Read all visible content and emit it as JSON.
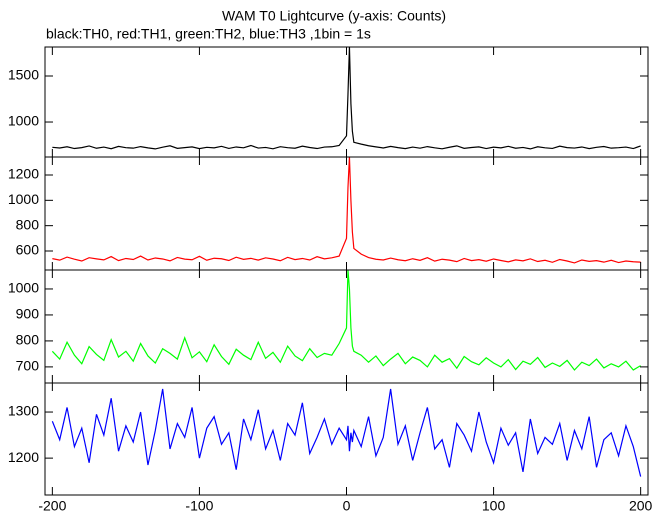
{
  "chart_data": [
    {
      "type": "line",
      "title": "WAM T0 Lightcurve (y-axis: Counts)",
      "subtitle": "black:TH0, red:TH1, green:TH2, blue:TH3 ,1bin = 1s",
      "x": [
        -200,
        -195,
        -190,
        -185,
        -180,
        -175,
        -170,
        -165,
        -160,
        -155,
        -150,
        -145,
        -140,
        -135,
        -130,
        -125,
        -120,
        -115,
        -110,
        -105,
        -100,
        -95,
        -90,
        -85,
        -80,
        -75,
        -70,
        -65,
        -60,
        -55,
        -50,
        -45,
        -40,
        -35,
        -30,
        -25,
        -20,
        -15,
        -10,
        -5,
        0,
        1,
        2,
        3,
        4,
        5,
        10,
        15,
        20,
        25,
        30,
        35,
        40,
        45,
        50,
        55,
        60,
        65,
        70,
        75,
        80,
        85,
        90,
        95,
        100,
        105,
        110,
        115,
        120,
        125,
        130,
        135,
        140,
        145,
        150,
        155,
        160,
        165,
        170,
        175,
        180,
        185,
        190,
        195,
        200
      ],
      "values": [
        725,
        718,
        731,
        712,
        722,
        740,
        715,
        728,
        710,
        735,
        721,
        716,
        733,
        719,
        708,
        727,
        742,
        714,
        722,
        730,
        711,
        725,
        719,
        736,
        713,
        729,
        720,
        745,
        717,
        724,
        709,
        732,
        721,
        715,
        738,
        723,
        712,
        728,
        731,
        745,
        850,
        1300,
        1815,
        1200,
        900,
        780,
        760,
        742,
        730,
        718,
        735,
        722,
        711,
        728,
        716,
        733,
        720,
        709,
        726,
        741,
        714,
        723,
        730,
        712,
        727,
        719,
        736,
        715,
        724,
        708,
        731,
        720,
        713,
        738,
        722,
        717,
        729,
        711,
        725,
        734,
        716,
        721,
        728,
        712,
        740
      ],
      "color": "#000000",
      "xlim": [
        -205,
        205
      ],
      "xticks": [
        -200,
        -100,
        0,
        100,
        200
      ],
      "ylim": [
        620,
        1815
      ],
      "yticks": [
        1000,
        1500
      ]
    },
    {
      "type": "line",
      "x": [
        -200,
        -195,
        -190,
        -185,
        -180,
        -175,
        -170,
        -165,
        -160,
        -155,
        -150,
        -145,
        -140,
        -135,
        -130,
        -125,
        -120,
        -115,
        -110,
        -105,
        -100,
        -95,
        -90,
        -85,
        -80,
        -75,
        -70,
        -65,
        -60,
        -55,
        -50,
        -45,
        -40,
        -35,
        -30,
        -25,
        -20,
        -15,
        -10,
        -5,
        0,
        1,
        2,
        3,
        4,
        5,
        10,
        15,
        20,
        25,
        30,
        35,
        40,
        45,
        50,
        55,
        60,
        65,
        70,
        75,
        80,
        85,
        90,
        95,
        100,
        105,
        110,
        115,
        120,
        125,
        130,
        135,
        140,
        145,
        150,
        155,
        160,
        165,
        170,
        175,
        180,
        185,
        190,
        195,
        200
      ],
      "values": [
        540,
        528,
        552,
        535,
        521,
        547,
        538,
        530,
        556,
        524,
        541,
        533,
        560,
        529,
        545,
        537,
        522,
        549,
        536,
        531,
        558,
        527,
        543,
        539,
        525,
        551,
        534,
        542,
        528,
        546,
        537,
        523,
        550,
        532,
        541,
        529,
        555,
        538,
        546,
        560,
        700,
        1100,
        1342,
        1000,
        750,
        620,
        575,
        548,
        535,
        529,
        544,
        531,
        523,
        539,
        526,
        547,
        520,
        535,
        528,
        516,
        541,
        524,
        532,
        519,
        537,
        525,
        514,
        530,
        522,
        538,
        517,
        527,
        511,
        533,
        521,
        506,
        529,
        518,
        524,
        512,
        527,
        509,
        521,
        515,
        512
      ],
      "color": "#ff0000",
      "xlim": [
        -205,
        205
      ],
      "xticks": [
        -200,
        -100,
        0,
        100,
        200
      ],
      "ylim": [
        450,
        1342
      ],
      "yticks": [
        600,
        800,
        1000,
        1200
      ]
    },
    {
      "type": "line",
      "x": [
        -200,
        -195,
        -190,
        -185,
        -180,
        -175,
        -170,
        -165,
        -160,
        -155,
        -150,
        -145,
        -140,
        -135,
        -130,
        -125,
        -120,
        -115,
        -110,
        -105,
        -100,
        -95,
        -90,
        -85,
        -80,
        -75,
        -70,
        -65,
        -60,
        -55,
        -50,
        -45,
        -40,
        -35,
        -30,
        -25,
        -20,
        -15,
        -10,
        -5,
        0,
        1,
        2,
        3,
        4,
        5,
        10,
        15,
        20,
        25,
        30,
        35,
        40,
        45,
        50,
        55,
        60,
        65,
        70,
        75,
        80,
        85,
        90,
        95,
        100,
        105,
        110,
        115,
        120,
        125,
        130,
        135,
        140,
        145,
        150,
        155,
        160,
        165,
        170,
        175,
        180,
        185,
        190,
        195,
        200
      ],
      "values": [
        760,
        730,
        795,
        745,
        712,
        778,
        748,
        725,
        805,
        738,
        760,
        722,
        790,
        742,
        715,
        770,
        752,
        730,
        812,
        735,
        758,
        720,
        785,
        740,
        710,
        768,
        745,
        728,
        795,
        733,
        756,
        718,
        780,
        742,
        724,
        770,
        736,
        752,
        745,
        790,
        850,
        1073,
        1000,
        850,
        780,
        760,
        745,
        718,
        742,
        705,
        730,
        752,
        712,
        738,
        725,
        700,
        745,
        718,
        732,
        695,
        740,
        720,
        708,
        735,
        715,
        700,
        728,
        690,
        722,
        710,
        736,
        698,
        715,
        702,
        725,
        688,
        718,
        705,
        730,
        696,
        712,
        700,
        722,
        688,
        705
      ],
      "color": "#00ff00",
      "xlim": [
        -205,
        205
      ],
      "xticks": [
        -200,
        -100,
        0,
        100,
        200
      ],
      "ylim": [
        638,
        1073
      ],
      "yticks": [
        700,
        800,
        900,
        1000
      ]
    },
    {
      "type": "line",
      "x": [
        -200,
        -195,
        -190,
        -185,
        -180,
        -175,
        -170,
        -165,
        -160,
        -155,
        -150,
        -145,
        -140,
        -135,
        -130,
        -125,
        -120,
        -115,
        -110,
        -105,
        -100,
        -95,
        -90,
        -85,
        -80,
        -75,
        -70,
        -65,
        -60,
        -55,
        -50,
        -45,
        -40,
        -35,
        -30,
        -25,
        -20,
        -15,
        -10,
        -5,
        0,
        1,
        2,
        3,
        4,
        5,
        10,
        15,
        20,
        25,
        30,
        35,
        40,
        45,
        50,
        55,
        60,
        65,
        70,
        75,
        80,
        85,
        90,
        95,
        100,
        105,
        110,
        115,
        120,
        125,
        130,
        135,
        140,
        145,
        150,
        155,
        160,
        165,
        170,
        175,
        180,
        185,
        190,
        195,
        200
      ],
      "values": [
        1280,
        1240,
        1310,
        1225,
        1265,
        1190,
        1295,
        1250,
        1330,
        1215,
        1270,
        1235,
        1300,
        1185,
        1260,
        1350,
        1220,
        1275,
        1245,
        1310,
        1200,
        1265,
        1290,
        1230,
        1255,
        1175,
        1285,
        1240,
        1305,
        1220,
        1260,
        1195,
        1275,
        1250,
        1320,
        1210,
        1245,
        1285,
        1230,
        1265,
        1240,
        1270,
        1215,
        1255,
        1235,
        1260,
        1225,
        1290,
        1205,
        1245,
        1350,
        1230,
        1270,
        1195,
        1255,
        1310,
        1220,
        1240,
        1180,
        1275,
        1250,
        1215,
        1300,
        1235,
        1190,
        1265,
        1228,
        1255,
        1170,
        1285,
        1210,
        1245,
        1230,
        1275,
        1195,
        1260,
        1220,
        1290,
        1180,
        1240,
        1255,
        1205,
        1270,
        1225,
        1160
      ],
      "color": "#0000ff",
      "xlim": [
        -205,
        205
      ],
      "xticks": [
        -200,
        -100,
        0,
        100,
        200
      ],
      "ylim": [
        1120,
        1363
      ],
      "yticks": [
        1200,
        1300
      ]
    }
  ]
}
